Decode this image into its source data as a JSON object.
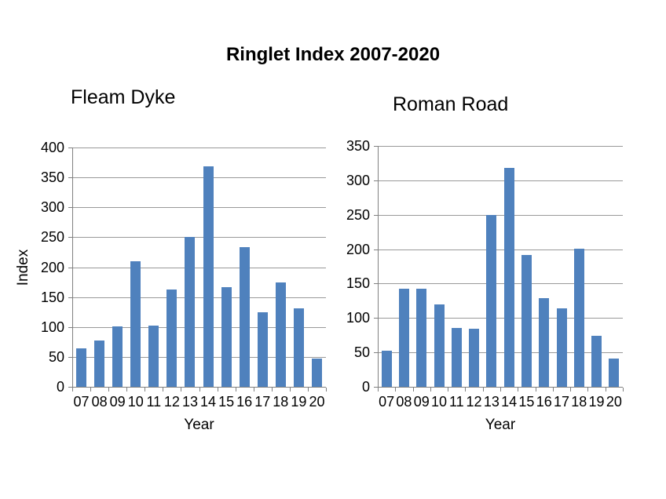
{
  "title": "Ringlet Index 2007-2020",
  "colors": {
    "bar": "#4f81bd",
    "grid": "#999999",
    "axis": "#808080",
    "text": "#000000",
    "background": "#ffffff"
  },
  "chart_data": [
    {
      "type": "bar",
      "title": "Fleam Dyke",
      "xlabel": "Year",
      "ylabel": "Index",
      "ylim": [
        0,
        400
      ],
      "ytick_step": 50,
      "grid": true,
      "legend": "none",
      "categories": [
        "07",
        "08",
        "09",
        "10",
        "11",
        "12",
        "13",
        "14",
        "15",
        "16",
        "17",
        "18",
        "19",
        "20"
      ],
      "values": [
        64,
        77,
        101,
        210,
        102,
        163,
        250,
        369,
        167,
        233,
        125,
        175,
        131,
        47
      ]
    },
    {
      "type": "bar",
      "title": "Roman Road",
      "xlabel": "Year",
      "ylabel": "",
      "ylim": [
        0,
        350
      ],
      "ytick_step": 50,
      "grid": true,
      "legend": "none",
      "categories": [
        "07",
        "08",
        "09",
        "10",
        "11",
        "12",
        "13",
        "14",
        "15",
        "16",
        "17",
        "18",
        "19",
        "20"
      ],
      "values": [
        52,
        142,
        143,
        120,
        86,
        84,
        250,
        318,
        192,
        129,
        114,
        201,
        74,
        41
      ]
    }
  ]
}
